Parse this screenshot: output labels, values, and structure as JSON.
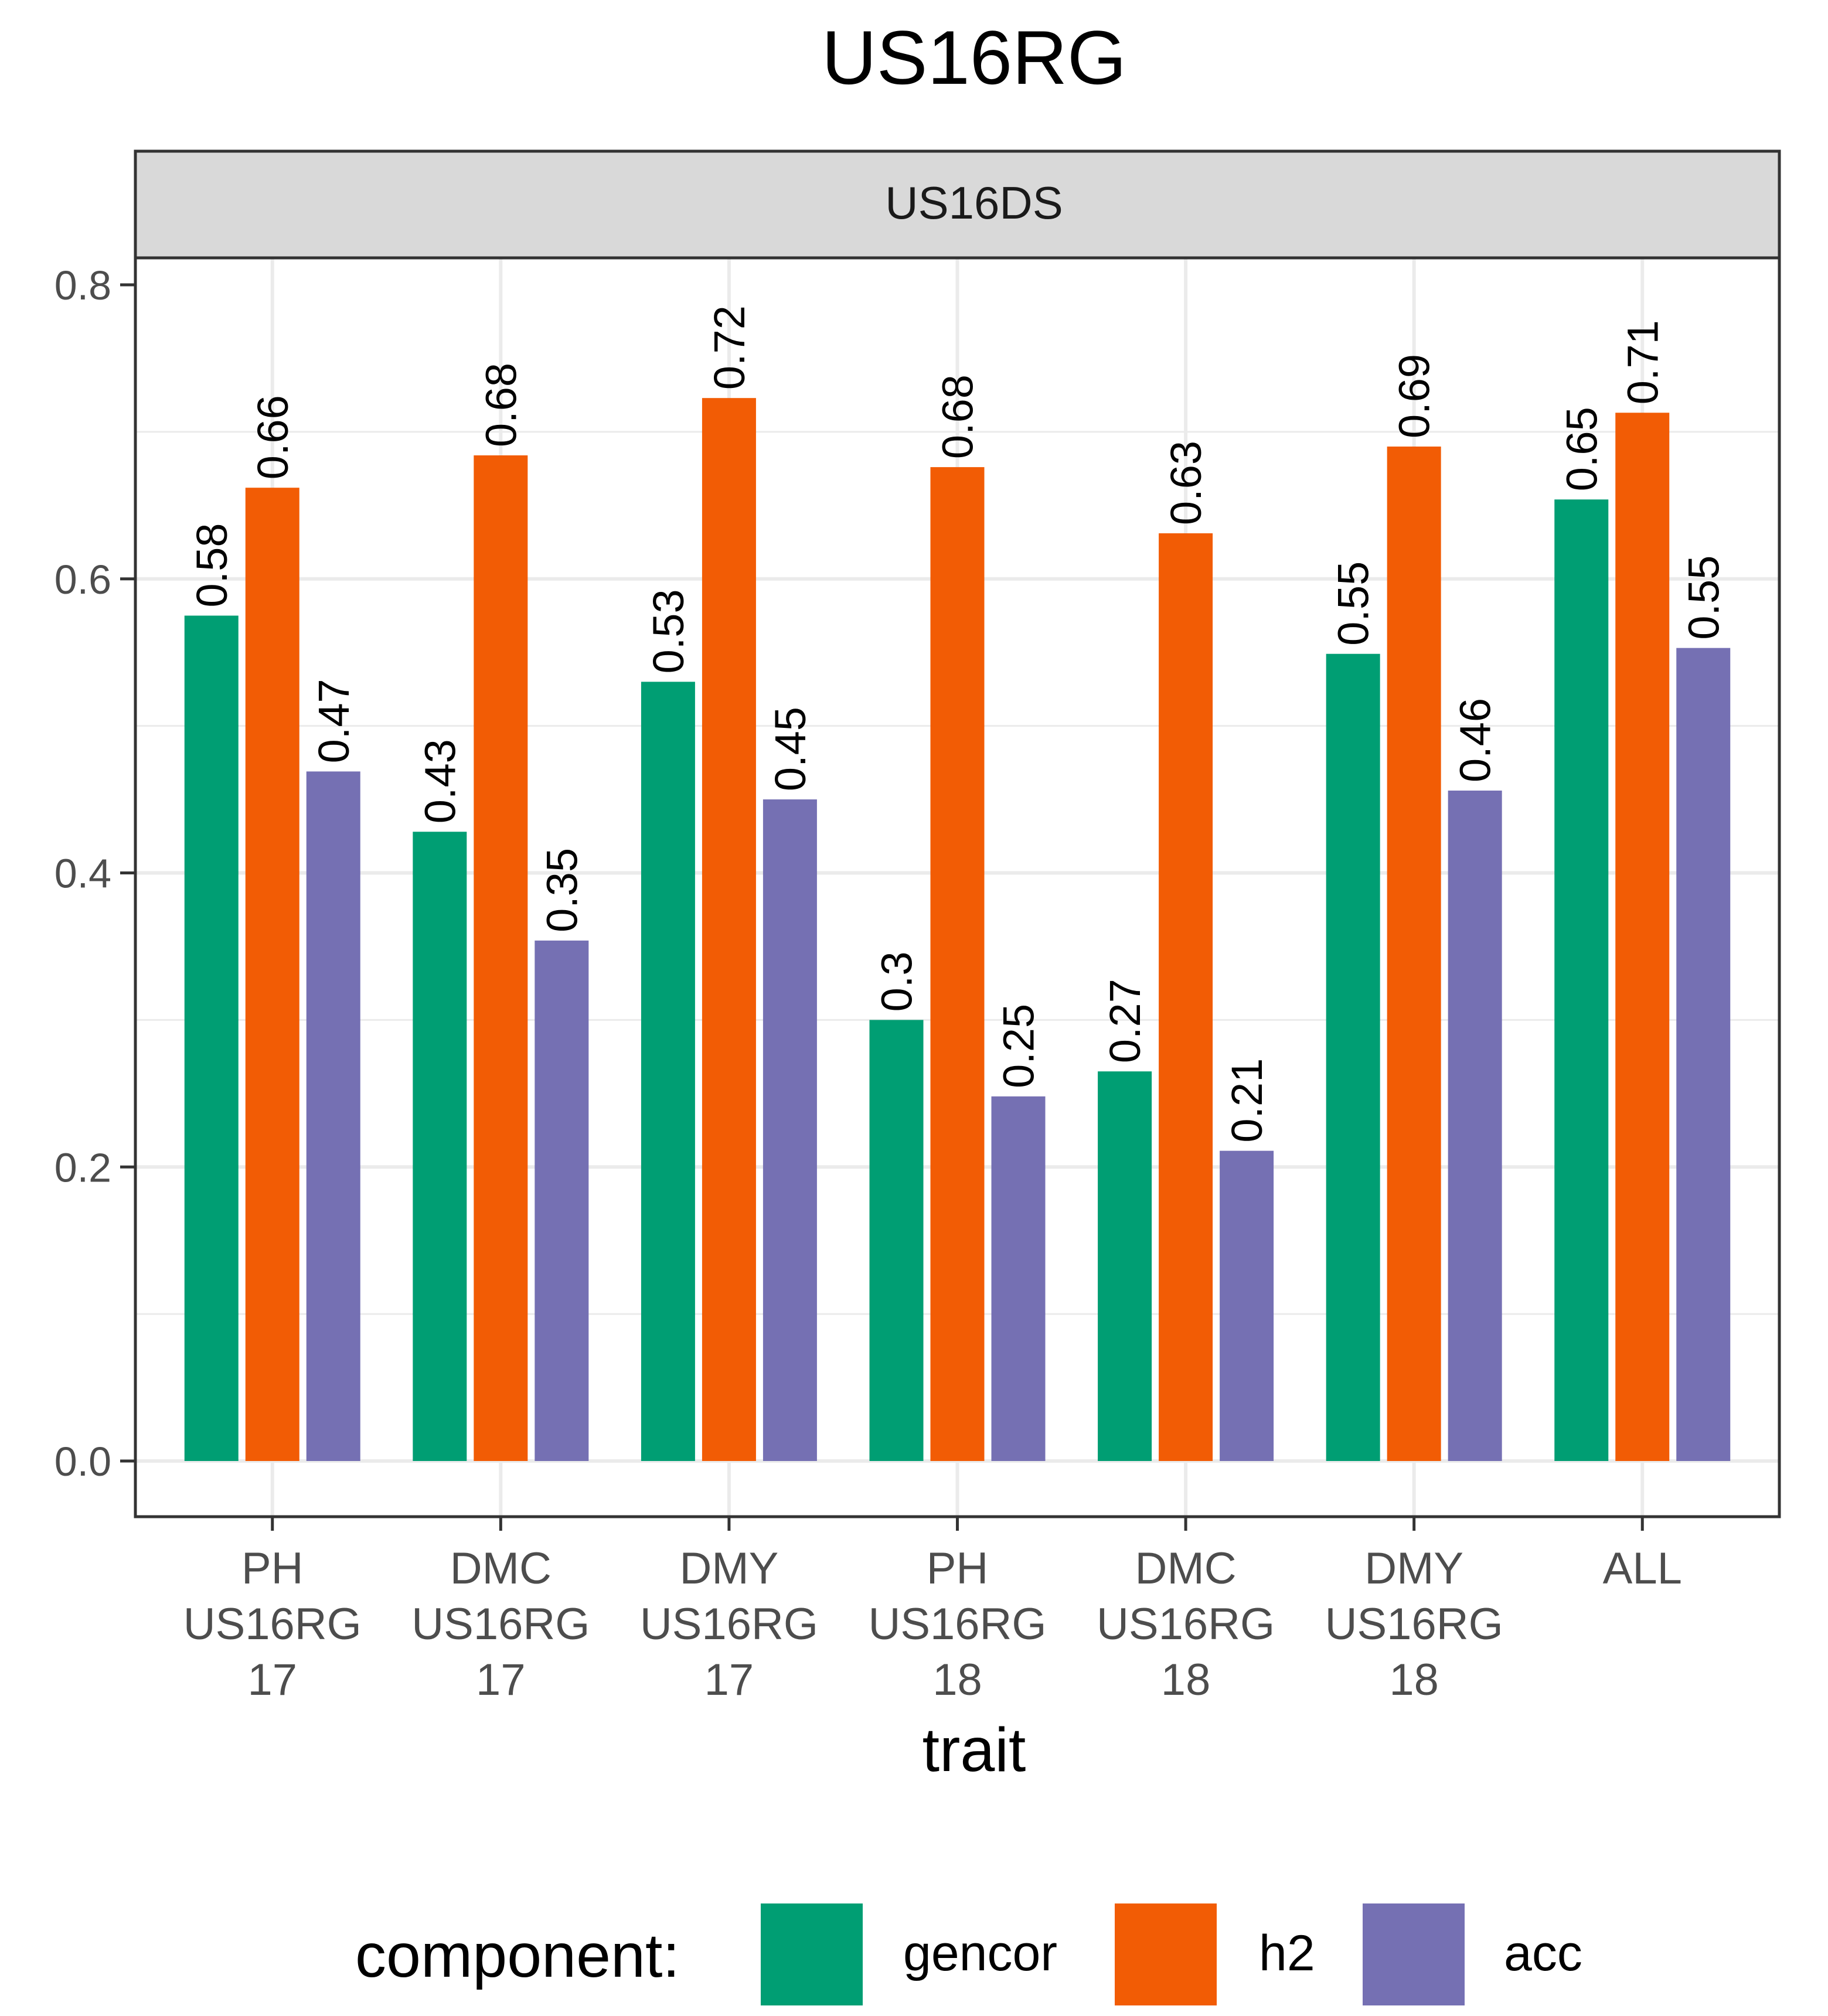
{
  "chart_data": {
    "type": "bar",
    "title": "US16RG",
    "facet_label": "US16DS",
    "xlabel": "trait",
    "ylabel": "",
    "ylim": [
      -0.04,
      0.84
    ],
    "yticks": [
      0.0,
      0.2,
      0.4,
      0.6,
      0.8
    ],
    "ytick_labels": [
      "0.0",
      "0.2",
      "0.4",
      "0.6",
      "0.8"
    ],
    "grid": true,
    "legend_position": "bottom",
    "legend_title": "component:",
    "categories": [
      [
        "PH",
        "US16RG",
        "17"
      ],
      [
        "DMC",
        "US16RG",
        "17"
      ],
      [
        "DMY",
        "US16RG",
        "17"
      ],
      [
        "PH",
        "US16RG",
        "18"
      ],
      [
        "DMC",
        "US16RG",
        "18"
      ],
      [
        "DMY",
        "US16RG",
        "18"
      ],
      [
        "ALL"
      ]
    ],
    "series": [
      {
        "name": "gencor",
        "color": "#009E73",
        "values": [
          0.575,
          0.428,
          0.53,
          0.3,
          0.265,
          0.549,
          0.654
        ],
        "labels": [
          "0.58",
          "0.43",
          "0.53",
          "0.3",
          "0.27",
          "0.55",
          "0.65"
        ]
      },
      {
        "name": "h2",
        "color": "#F25C05",
        "values": [
          0.662,
          0.684,
          0.723,
          0.676,
          0.631,
          0.69,
          0.713
        ],
        "labels": [
          "0.66",
          "0.68",
          "0.72",
          "0.68",
          "0.63",
          "0.69",
          "0.71"
        ]
      },
      {
        "name": "acc",
        "color": "#7570B3",
        "values": [
          0.469,
          0.354,
          0.45,
          0.248,
          0.211,
          0.456,
          0.553
        ],
        "labels": [
          "0.47",
          "0.35",
          "0.45",
          "0.25",
          "0.21",
          "0.46",
          "0.55"
        ]
      }
    ]
  }
}
